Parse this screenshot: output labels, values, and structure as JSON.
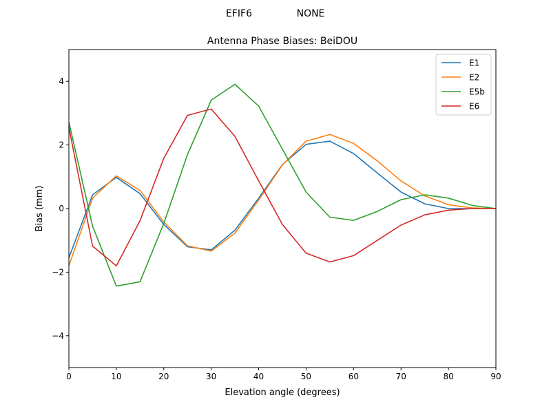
{
  "header": {
    "left": "EFIF6",
    "right": "NONE"
  },
  "chart_data": {
    "type": "line",
    "title": "Antenna Phase Biases: BeiDOU",
    "xlabel": "Elevation angle (degrees)",
    "ylabel": "Bias (mm)",
    "xlim": [
      0,
      90
    ],
    "ylim": [
      -5,
      5
    ],
    "xticks": [
      0,
      10,
      20,
      30,
      40,
      50,
      60,
      70,
      80,
      90
    ],
    "yticks": [
      -4,
      -2,
      0,
      2,
      4
    ],
    "xtick_labels": [
      "0",
      "10",
      "20",
      "30",
      "40",
      "50",
      "60",
      "70",
      "80",
      "90"
    ],
    "ytick_labels": [
      "−4",
      "−2",
      "0",
      "2",
      "4"
    ],
    "grid": false,
    "legend_position": "top-right",
    "x": [
      0,
      5,
      10,
      15,
      20,
      25,
      30,
      35,
      40,
      45,
      50,
      55,
      60,
      65,
      70,
      75,
      80,
      85,
      90
    ],
    "series": [
      {
        "name": "E1",
        "color": "#1f77b4",
        "values": [
          -1.55,
          0.43,
          0.98,
          0.47,
          -0.5,
          -1.2,
          -1.3,
          -0.68,
          0.33,
          1.38,
          2.02,
          2.12,
          1.73,
          1.12,
          0.52,
          0.15,
          0.0,
          0.0,
          0.0
        ]
      },
      {
        "name": "E2",
        "color": "#ff7f0e",
        "values": [
          -1.8,
          0.33,
          1.03,
          0.57,
          -0.42,
          -1.17,
          -1.34,
          -0.77,
          0.27,
          1.37,
          2.12,
          2.33,
          2.05,
          1.5,
          0.87,
          0.4,
          0.12,
          0.02,
          0.0
        ]
      },
      {
        "name": "E5b",
        "color": "#2ca02c",
        "values": [
          2.72,
          -0.55,
          -2.44,
          -2.3,
          -0.47,
          1.7,
          3.41,
          3.91,
          3.22,
          1.87,
          0.52,
          -0.27,
          -0.37,
          -0.09,
          0.28,
          0.43,
          0.33,
          0.1,
          0.0
        ]
      },
      {
        "name": "E6",
        "color": "#d62728",
        "values": [
          2.55,
          -1.18,
          -1.8,
          -0.38,
          1.58,
          2.93,
          3.13,
          2.27,
          0.87,
          -0.5,
          -1.4,
          -1.68,
          -1.48,
          -1.0,
          -0.52,
          -0.2,
          -0.05,
          0.0,
          0.0
        ]
      }
    ]
  }
}
